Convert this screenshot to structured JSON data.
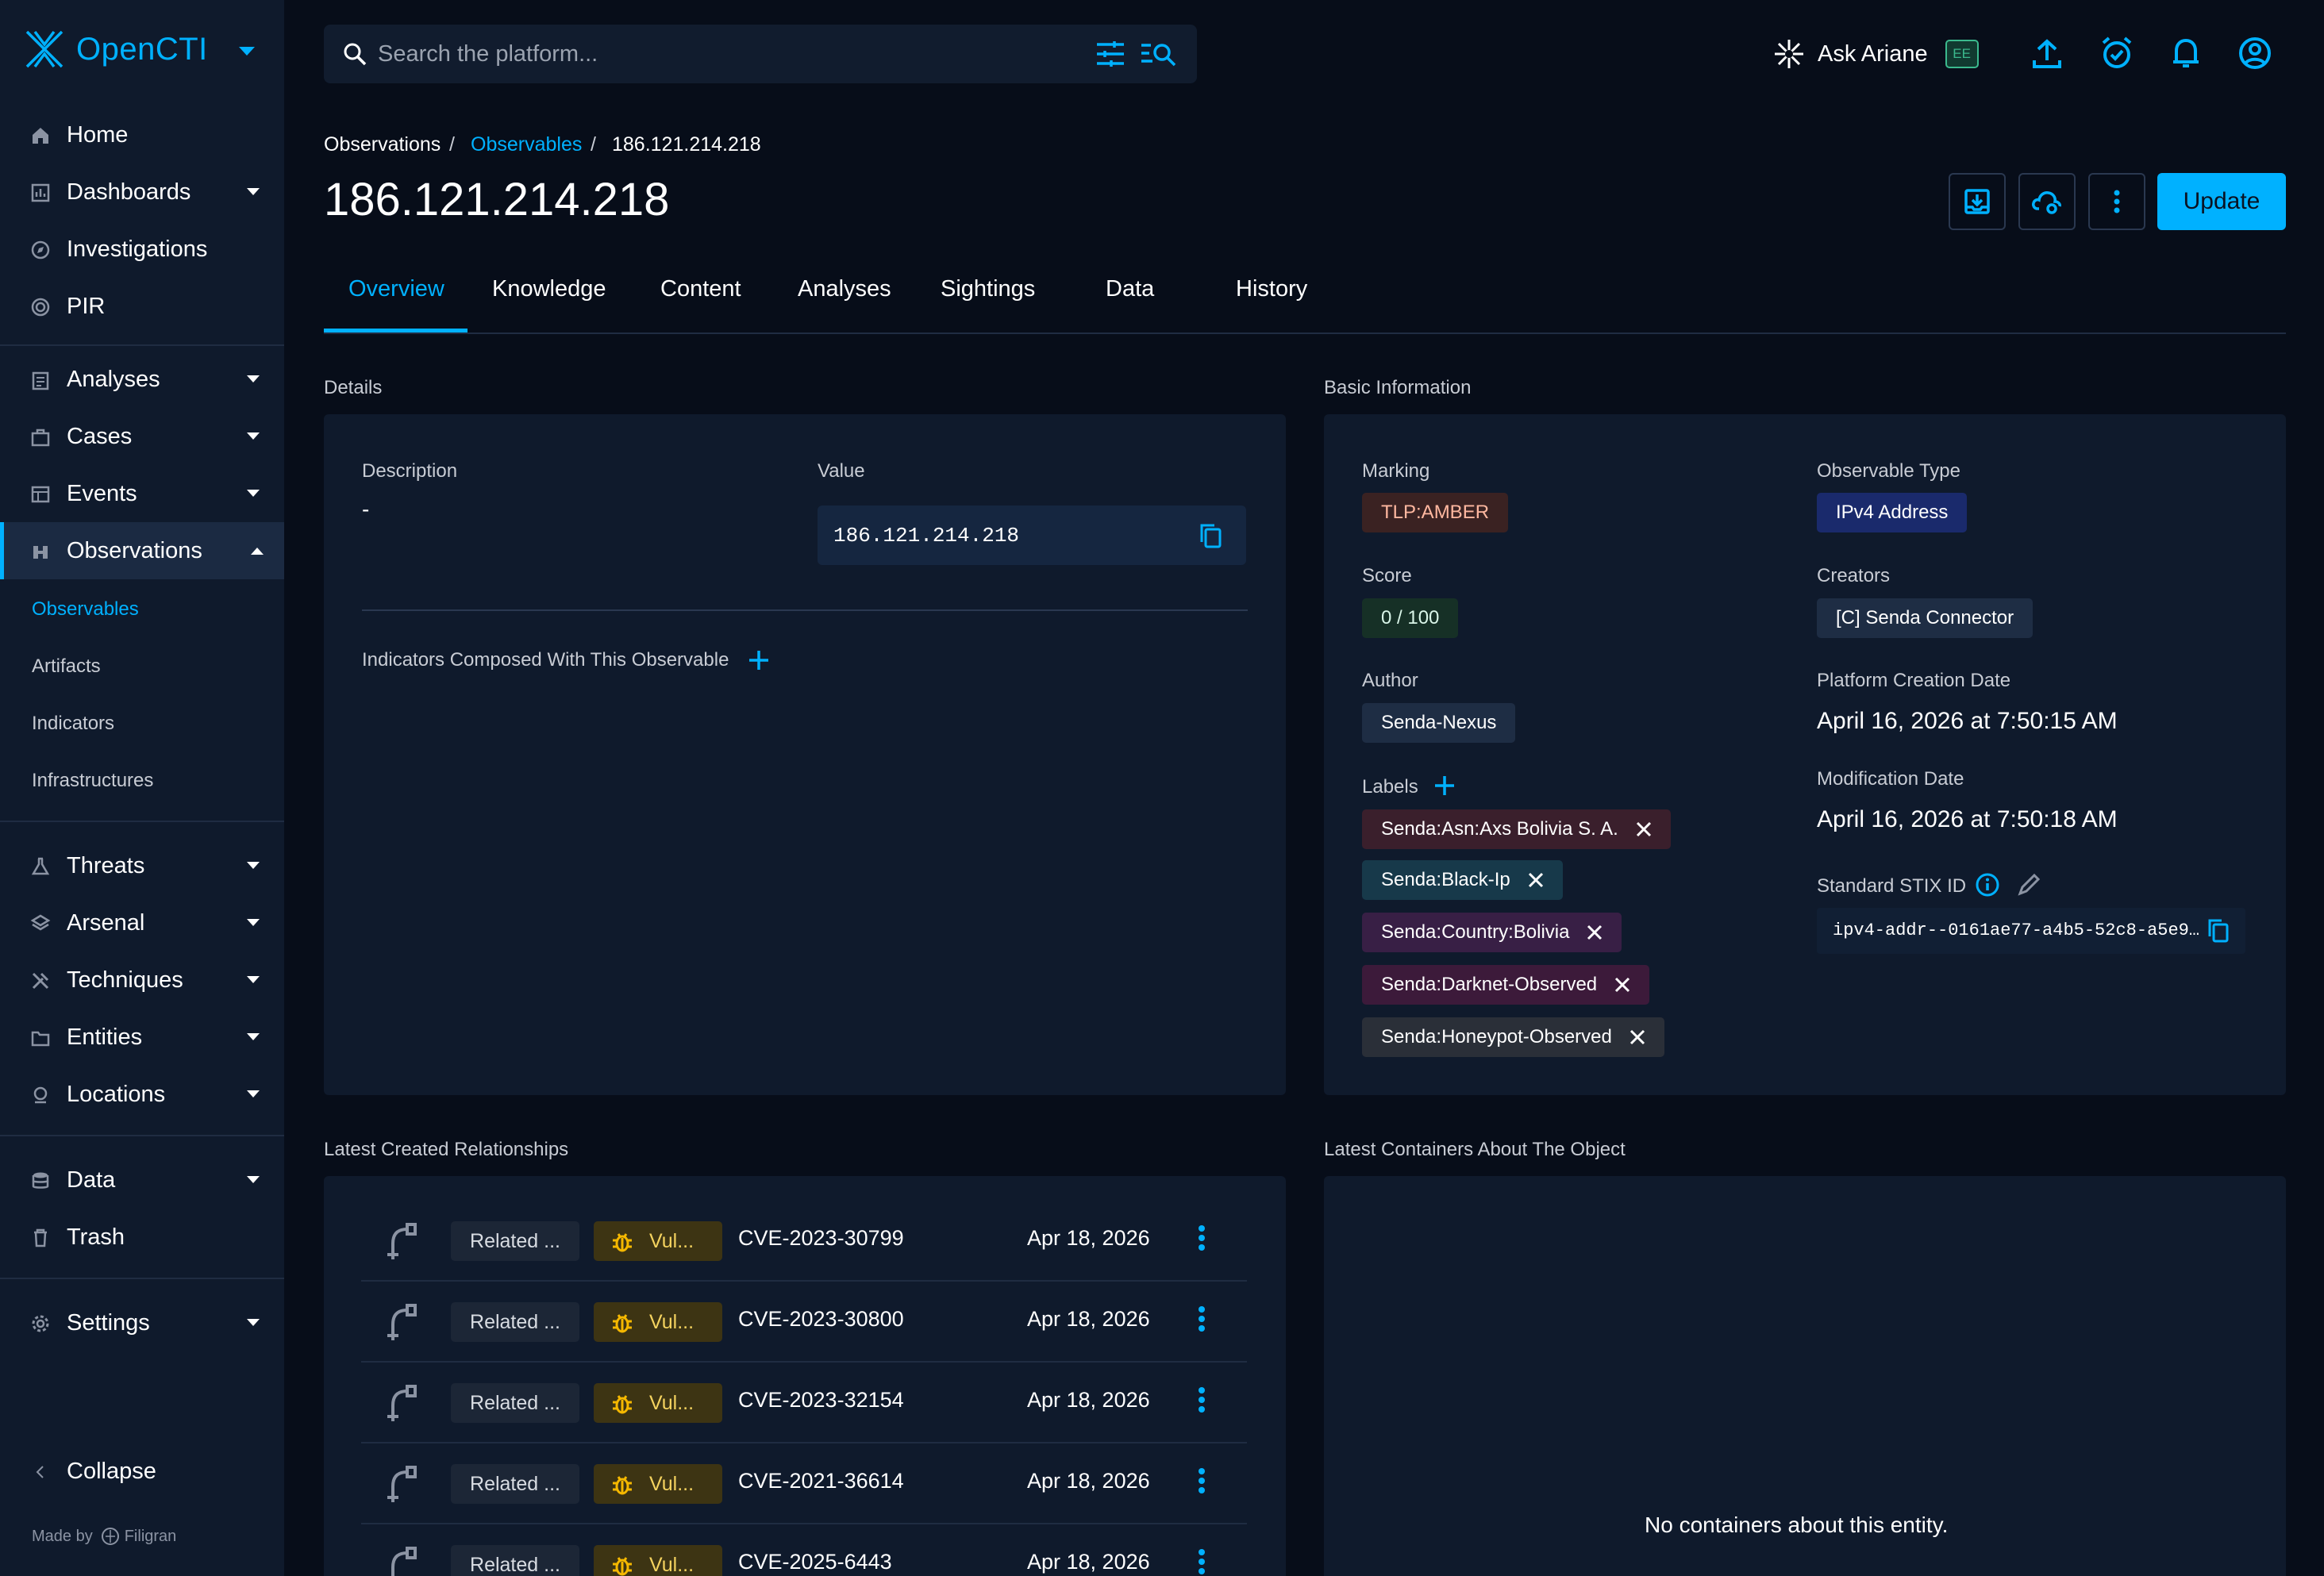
{
  "app": {
    "logo_text": "OpenCTI"
  },
  "search": {
    "placeholder": "Search the platform..."
  },
  "topbar": {
    "ask_label": "Ask Ariane",
    "ee_badge": "EE"
  },
  "sidebar": {
    "items": [
      {
        "label": "Home",
        "icon": "home-icon"
      },
      {
        "label": "Dashboards",
        "icon": "dashboard-icon"
      },
      {
        "label": "Investigations",
        "icon": "compass-icon"
      },
      {
        "label": "PIR",
        "icon": "radar-icon"
      },
      {
        "label": "Analyses",
        "icon": "clipboard-icon"
      },
      {
        "label": "Cases",
        "icon": "briefcase-icon"
      },
      {
        "label": "Events",
        "icon": "events-icon"
      },
      {
        "label": "Observations",
        "icon": "binoculars-icon"
      },
      {
        "label": "Threats",
        "icon": "flask-icon"
      },
      {
        "label": "Arsenal",
        "icon": "layers-icon"
      },
      {
        "label": "Techniques",
        "icon": "tools-icon"
      },
      {
        "label": "Entities",
        "icon": "folder-icon"
      },
      {
        "label": "Locations",
        "icon": "location-icon"
      },
      {
        "label": "Data",
        "icon": "database-icon"
      },
      {
        "label": "Trash",
        "icon": "trash-icon"
      },
      {
        "label": "Settings",
        "icon": "gear-icon"
      }
    ],
    "sub_items": [
      "Observables",
      "Artifacts",
      "Indicators",
      "Infrastructures"
    ],
    "collapse_label": "Collapse",
    "made_by": "Made by",
    "brand": "Filigran"
  },
  "breadcrumb": {
    "root": "Observations",
    "section": "Observables",
    "current": "186.121.214.218"
  },
  "page": {
    "title": "186.121.214.218",
    "update_label": "Update"
  },
  "tabs": [
    "Overview",
    "Knowledge",
    "Content",
    "Analyses",
    "Sightings",
    "Data",
    "History"
  ],
  "details": {
    "section_title": "Details",
    "description_label": "Description",
    "description_value": "-",
    "value_label": "Value",
    "value": "186.121.214.218",
    "indicators_label": "Indicators Composed With This Observable"
  },
  "basic": {
    "section_title": "Basic Information",
    "marking_label": "Marking",
    "marking": "TLP:AMBER",
    "score_label": "Score",
    "score": "0 / 100",
    "author_label": "Author",
    "author": "Senda-Nexus",
    "labels_label": "Labels",
    "labels": [
      "Senda:Asn:Axs Bolivia S. A.",
      "Senda:Black-Ip",
      "Senda:Country:Bolivia",
      "Senda:Darknet-Observed",
      "Senda:Honeypot-Observed"
    ],
    "observable_type_label": "Observable Type",
    "observable_type": "IPv4 Address",
    "creators_label": "Creators",
    "creator": "[C] Senda Connector",
    "platform_creation_label": "Platform Creation Date",
    "platform_creation": "April 16, 2026 at 7:50:15 AM",
    "modification_label": "Modification Date",
    "modification": "April 16, 2026 at 7:50:18 AM",
    "stix_label": "Standard STIX ID",
    "stix_id": "ipv4-addr--0161ae77-a4b5-52c8-a5e9…"
  },
  "relationships": {
    "section_title": "Latest Created Relationships",
    "rows": [
      {
        "rel": "Related ...",
        "type": "Vul...",
        "name": "CVE-2023-30799",
        "date": "Apr 18, 2026"
      },
      {
        "rel": "Related ...",
        "type": "Vul...",
        "name": "CVE-2023-30800",
        "date": "Apr 18, 2026"
      },
      {
        "rel": "Related ...",
        "type": "Vul...",
        "name": "CVE-2023-32154",
        "date": "Apr 18, 2026"
      },
      {
        "rel": "Related ...",
        "type": "Vul...",
        "name": "CVE-2021-36614",
        "date": "Apr 18, 2026"
      },
      {
        "rel": "Related ...",
        "type": "Vul...",
        "name": "CVE-2025-6443",
        "date": "Apr 18, 2026"
      }
    ]
  },
  "containers": {
    "section_title": "Latest Containers About The Object",
    "empty_text": "No containers about this entity."
  },
  "colors": {
    "accent": "#00b1ff",
    "background": "#070d19",
    "panel": "#0f1a2c"
  }
}
